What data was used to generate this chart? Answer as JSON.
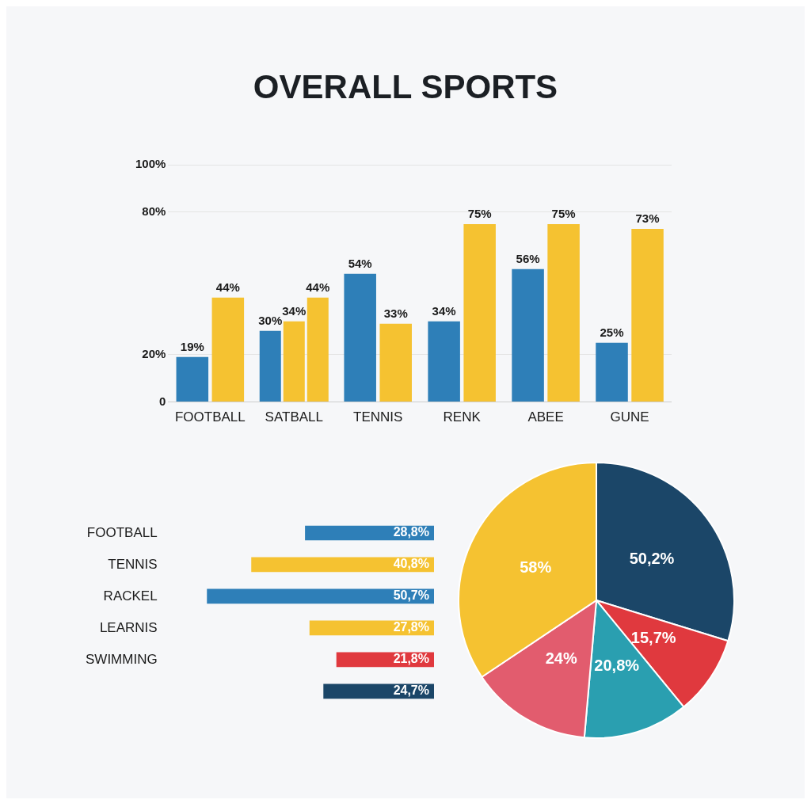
{
  "chart_data": [
    {
      "type": "bar",
      "title": "OVERALL SPORTS",
      "categories": [
        "FOOTBALL",
        "SATBALL",
        "TENNIS",
        "RENK",
        "ABEE",
        "GUNE"
      ],
      "ylim": [
        0,
        100
      ],
      "yticks": [
        0,
        {
          "value": 20,
          "label": "20%"
        },
        {
          "value": 80,
          "label": "80%"
        },
        {
          "value": 100,
          "label": "100%"
        }
      ],
      "grid": "y",
      "series": [
        {
          "color": "#2e7fb8",
          "values": [
            19,
            30,
            54,
            34,
            56,
            25
          ],
          "value_labels": [
            "19%",
            "30%",
            "54%",
            "34%",
            "56%",
            "25%"
          ]
        },
        {
          "color": "#f5c231",
          "values": [
            44,
            34,
            33,
            75,
            75,
            73
          ],
          "value_labels": [
            "44%",
            "34%",
            "33%",
            "75%",
            "75%",
            "73%"
          ]
        },
        {
          "color": "#f5c231",
          "values": [
            null,
            44,
            null,
            null,
            null,
            null
          ],
          "value_labels": [
            null,
            "44%",
            null,
            null,
            null,
            null
          ]
        }
      ]
    },
    {
      "type": "bar",
      "orientation": "horizontal",
      "tick_labels": "y",
      "categories": [
        "FOOTBALL",
        "TENNIS",
        "RACKEL",
        "LEARNIS",
        "SWIMMING",
        null
      ],
      "values": [
        28.8,
        40.8,
        50.7,
        27.8,
        21.8,
        24.7
      ],
      "colors": [
        "#2e7fb8",
        "#f5c231",
        "#2e7fb8",
        "#f5c231",
        "#e0393e",
        "#1b4668"
      ],
      "value_labels": [
        "28,8%",
        "40,8%",
        "50,7%",
        "27,8%",
        "21,8%",
        "24,7%"
      ]
    },
    {
      "type": "pie",
      "categories": [
        null,
        null,
        null,
        null,
        null
      ],
      "values": [
        50.2,
        15.7,
        20.8,
        24,
        58
      ],
      "colors": [
        "#1b4668",
        "#e0393e",
        "#2a9fb0",
        "#e25c6e",
        "#f5c231"
      ],
      "value_labels": [
        "50,2%",
        "15,7%",
        "20,8%",
        "24%",
        "58%"
      ]
    }
  ]
}
